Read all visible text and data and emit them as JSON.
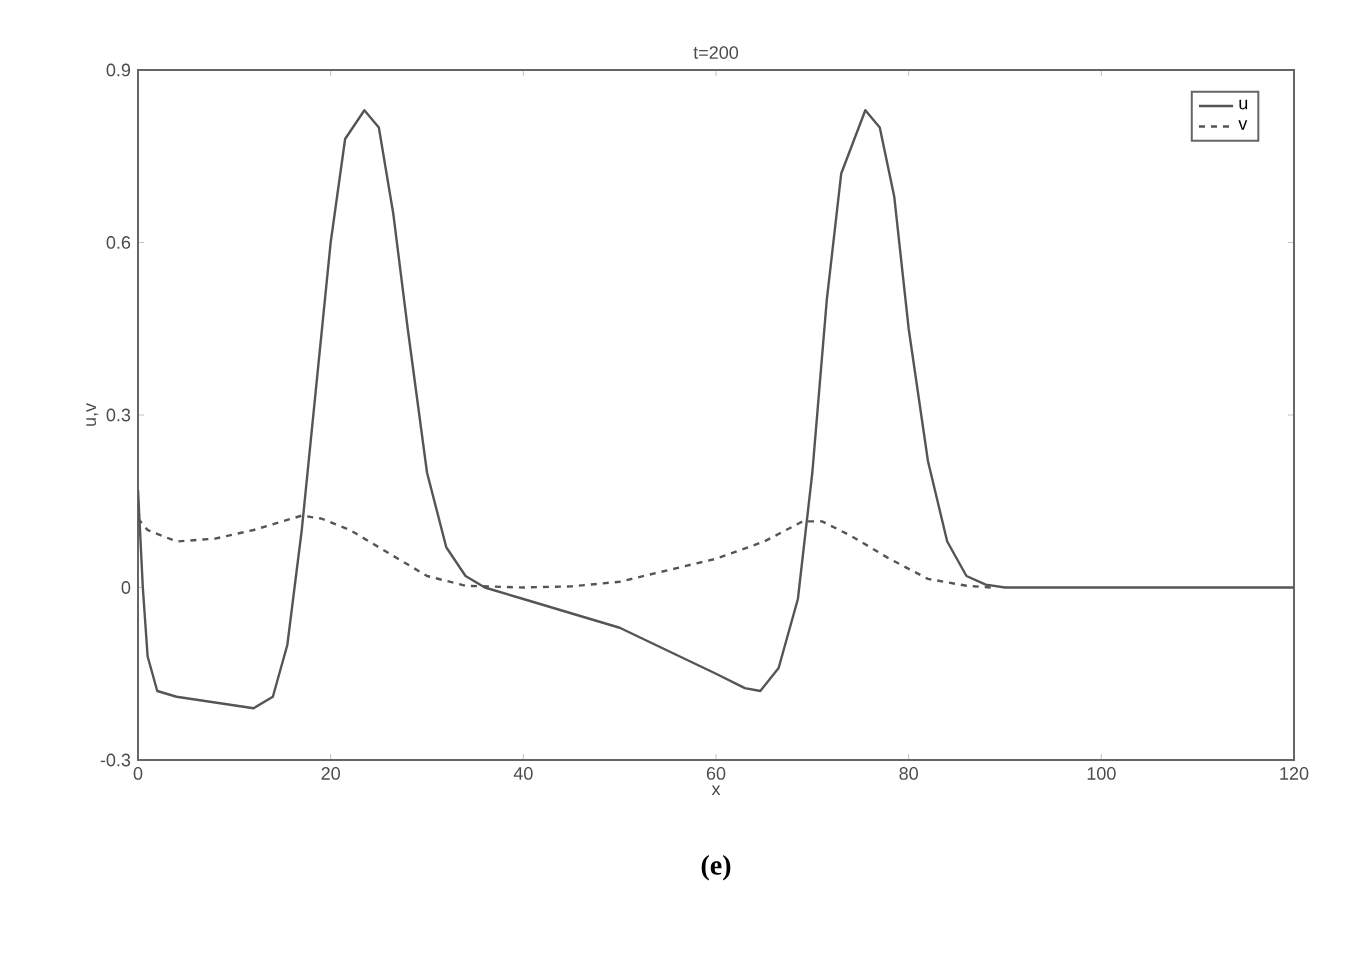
{
  "chart_data": {
    "type": "line",
    "title": "t=200",
    "xlabel": "x",
    "ylabel": "u,v",
    "xlim": [
      0,
      120
    ],
    "ylim": [
      -0.3,
      0.9
    ],
    "xticks": [
      0,
      20,
      40,
      60,
      80,
      100,
      120
    ],
    "yticks": [
      -0.3,
      0,
      0.3,
      0.6,
      0.9
    ],
    "legend": "top right",
    "grid": false,
    "annotations": [
      "(e)"
    ],
    "series": [
      {
        "name": "u",
        "color": "#555555",
        "line_style": "solid",
        "x": [
          0,
          0.5,
          1,
          2,
          4,
          8,
          12,
          14,
          15.5,
          17,
          18.5,
          20,
          21.5,
          23.5,
          25,
          26.5,
          28,
          30,
          32,
          34,
          36,
          40,
          50,
          55,
          60,
          63,
          64.6,
          66.5,
          68.5,
          70,
          71.5,
          73,
          75.5,
          77,
          78.5,
          80,
          82,
          84,
          86,
          88,
          90,
          120
        ],
        "values": [
          0.17,
          0,
          -0.12,
          -0.18,
          -0.19,
          -0.2,
          -0.21,
          -0.19,
          -0.1,
          0.1,
          0.35,
          0.6,
          0.78,
          0.83,
          0.8,
          0.65,
          0.45,
          0.2,
          0.07,
          0.02,
          0,
          -0.02,
          -0.07,
          -0.11,
          -0.15,
          -0.175,
          -0.18,
          -0.14,
          -0.02,
          0.2,
          0.5,
          0.72,
          0.83,
          0.8,
          0.68,
          0.45,
          0.22,
          0.08,
          0.02,
          0.005,
          0,
          0
        ]
      },
      {
        "name": "v",
        "color": "#555555",
        "line_style": "dashed",
        "x": [
          0,
          1,
          4,
          8,
          12,
          17,
          19,
          22,
          26,
          30,
          34,
          40,
          45,
          50,
          55,
          60,
          65,
          69,
          71,
          74,
          78,
          82,
          86,
          88.6
        ],
        "values": [
          0.12,
          0.1,
          0.08,
          0.085,
          0.1,
          0.125,
          0.12,
          0.1,
          0.06,
          0.02,
          0.003,
          0,
          0.002,
          0.01,
          0.03,
          0.05,
          0.08,
          0.115,
          0.115,
          0.09,
          0.05,
          0.015,
          0.003,
          0
        ]
      }
    ]
  }
}
